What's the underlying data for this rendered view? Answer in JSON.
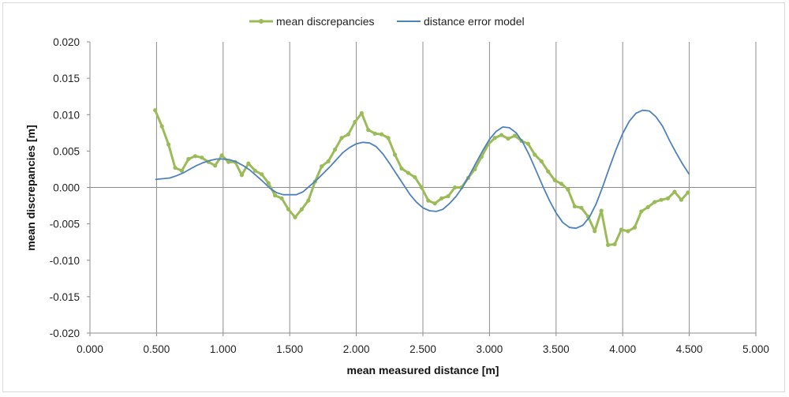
{
  "chart_data": {
    "type": "line",
    "xlabel": "mean measured distance [m]",
    "ylabel": "mean discrepancies [m]",
    "xlim": [
      0,
      5
    ],
    "ylim": [
      -0.02,
      0.02
    ],
    "x_ticks": [
      "0.000",
      "0.500",
      "1.000",
      "1.500",
      "2.000",
      "2.500",
      "3.000",
      "3.500",
      "4.000",
      "4.500",
      "5.000"
    ],
    "y_ticks": [
      "0.020",
      "0.015",
      "0.010",
      "0.005",
      "0.000",
      "-0.005",
      "-0.010",
      "-0.015",
      "-0.020"
    ],
    "grid": "vertical",
    "legend_position": "top",
    "series": [
      {
        "name": "mean discrepancies",
        "color": "#9bbb59",
        "marker": "circle",
        "x": [
          0.49,
          0.54,
          0.59,
          0.64,
          0.69,
          0.74,
          0.79,
          0.84,
          0.89,
          0.94,
          0.99,
          1.04,
          1.09,
          1.14,
          1.19,
          1.24,
          1.29,
          1.34,
          1.39,
          1.44,
          1.49,
          1.54,
          1.59,
          1.64,
          1.69,
          1.74,
          1.79,
          1.84,
          1.89,
          1.94,
          1.99,
          2.04,
          2.09,
          2.14,
          2.19,
          2.24,
          2.29,
          2.34,
          2.39,
          2.44,
          2.49,
          2.54,
          2.59,
          2.64,
          2.69,
          2.74,
          2.79,
          2.84,
          2.89,
          2.94,
          2.99,
          3.04,
          3.09,
          3.14,
          3.19,
          3.24,
          3.29,
          3.34,
          3.39,
          3.44,
          3.49,
          3.54,
          3.59,
          3.64,
          3.69,
          3.74,
          3.79,
          3.84,
          3.89,
          3.94,
          3.99,
          4.04,
          4.09,
          4.14,
          4.19,
          4.24,
          4.29,
          4.34,
          4.39,
          4.44,
          4.49
        ],
        "y": [
          0.0106,
          0.0084,
          0.0059,
          0.0027,
          0.0023,
          0.0039,
          0.0043,
          0.0041,
          0.0035,
          0.003,
          0.0044,
          0.0035,
          0.0035,
          0.0017,
          0.0033,
          0.0023,
          0.0018,
          0.0006,
          -0.0011,
          -0.0015,
          -0.003,
          -0.0041,
          -0.003,
          -0.0018,
          0.0008,
          0.0029,
          0.0036,
          0.0052,
          0.0068,
          0.0073,
          0.009,
          0.0102,
          0.0079,
          0.0074,
          0.0073,
          0.0068,
          0.0045,
          0.0026,
          0.002,
          0.0014,
          0.0,
          -0.0018,
          -0.0022,
          -0.0015,
          -0.0012,
          0.0,
          0.0,
          0.0013,
          0.0025,
          0.0042,
          0.0059,
          0.0068,
          0.0072,
          0.0067,
          0.0071,
          0.0064,
          0.006,
          0.0045,
          0.0036,
          0.0022,
          0.001,
          0.0005,
          -0.0003,
          -0.0026,
          -0.0028,
          -0.004,
          -0.006,
          -0.0032,
          -0.0079,
          -0.0078,
          -0.0058,
          -0.006,
          -0.0055,
          -0.0033,
          -0.0027,
          -0.002,
          -0.0017,
          -0.0015,
          -0.0006,
          -0.0017,
          -0.0007
        ]
      },
      {
        "name": "distance error model",
        "color": "#4f81bd",
        "marker": "none",
        "x": [
          0.49,
          0.55,
          0.6,
          0.65,
          0.7,
          0.75,
          0.8,
          0.85,
          0.9,
          0.95,
          1.0,
          1.05,
          1.1,
          1.15,
          1.2,
          1.25,
          1.3,
          1.35,
          1.4,
          1.45,
          1.5,
          1.55,
          1.6,
          1.65,
          1.7,
          1.75,
          1.8,
          1.85,
          1.9,
          1.95,
          2.0,
          2.05,
          2.1,
          2.15,
          2.2,
          2.25,
          2.3,
          2.35,
          2.4,
          2.45,
          2.5,
          2.55,
          2.6,
          2.65,
          2.7,
          2.75,
          2.8,
          2.85,
          2.9,
          2.95,
          3.0,
          3.05,
          3.1,
          3.15,
          3.2,
          3.25,
          3.3,
          3.35,
          3.4,
          3.45,
          3.5,
          3.55,
          3.6,
          3.65,
          3.7,
          3.75,
          3.8,
          3.85,
          3.9,
          3.95,
          4.0,
          4.05,
          4.1,
          4.15,
          4.2,
          4.25,
          4.3,
          4.35,
          4.4,
          4.45,
          4.5
        ],
        "y": [
          0.0011,
          0.0012,
          0.0013,
          0.0016,
          0.002,
          0.0025,
          0.003,
          0.0034,
          0.0037,
          0.0039,
          0.0039,
          0.0038,
          0.0035,
          0.003,
          0.0024,
          0.0016,
          0.0008,
          -0.0001,
          -0.0007,
          -0.001,
          -0.001,
          -0.001,
          -0.0006,
          0.0002,
          0.001,
          0.0019,
          0.0028,
          0.0038,
          0.0048,
          0.0055,
          0.006,
          0.0062,
          0.0061,
          0.0056,
          0.0046,
          0.0033,
          0.0019,
          0.0005,
          -0.0009,
          -0.002,
          -0.0028,
          -0.0032,
          -0.0033,
          -0.003,
          -0.0022,
          -0.0012,
          0.0001,
          0.0017,
          0.0034,
          0.0051,
          0.0066,
          0.0077,
          0.0083,
          0.0082,
          0.0075,
          0.0062,
          0.0044,
          0.0023,
          0.0002,
          -0.0018,
          -0.0035,
          -0.0048,
          -0.0055,
          -0.0056,
          -0.0052,
          -0.0041,
          -0.0023,
          0.0001,
          0.0027,
          0.0052,
          0.0074,
          0.0091,
          0.0102,
          0.0106,
          0.0105,
          0.0097,
          0.0084,
          0.0065,
          0.0048,
          0.0032,
          0.0018
        ]
      }
    ]
  }
}
